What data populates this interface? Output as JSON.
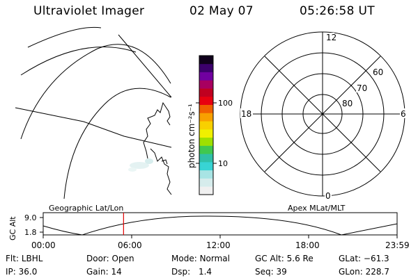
{
  "header": {
    "title": "Ultraviolet Imager",
    "date": "02 May 07",
    "time": "05:26:58 UT"
  },
  "colorbar": {
    "label": "photon cm⁻²s⁻¹",
    "tick_high": "100",
    "tick_low": "10",
    "colors": [
      "#f0f0f0",
      "#d6ecec",
      "#a8e4e4",
      "#38d4d4",
      "#30c0a8",
      "#40c850",
      "#9ee000",
      "#f0f000",
      "#f8d000",
      "#f8a000",
      "#f06000",
      "#e80010",
      "#c00020",
      "#a80060",
      "#7000a0",
      "#3c006c",
      "#10001c"
    ]
  },
  "polar": {
    "mlt_labels": {
      "top": "12",
      "left": "18",
      "right": "6",
      "bottom": "0"
    },
    "lat_labels": [
      "60",
      "70",
      "80"
    ]
  },
  "timeline": {
    "left_label": "Geographic Lat/Lon",
    "right_label": "Apex MLat/MLT",
    "axis_title": "GC Alt",
    "y_top": "9.0",
    "y_bottom": "1.8",
    "ticks": [
      "00:00",
      "06:00",
      "12:00",
      "18:00",
      "23:59"
    ],
    "marker_time_hours": 5.45,
    "marker_color": "#e00000"
  },
  "info": {
    "row1": [
      {
        "key": "Flt:",
        "value": "LBHL"
      },
      {
        "key": "Door:",
        "value": "Open"
      },
      {
        "key": "Mode:",
        "value": "Normal"
      },
      {
        "key": "GC Alt:",
        "value": "5.6 Re"
      },
      {
        "key": "GLat:",
        "value": "−61.3"
      }
    ],
    "row2": [
      {
        "key": "IP:",
        "value": "36.0"
      },
      {
        "key": "Gain:",
        "value": "14"
      },
      {
        "key": "Dsp:",
        "value": "1.4"
      },
      {
        "key": "Seq:",
        "value": "39"
      },
      {
        "key": "GLon:",
        "value": "228.7"
      }
    ]
  }
}
